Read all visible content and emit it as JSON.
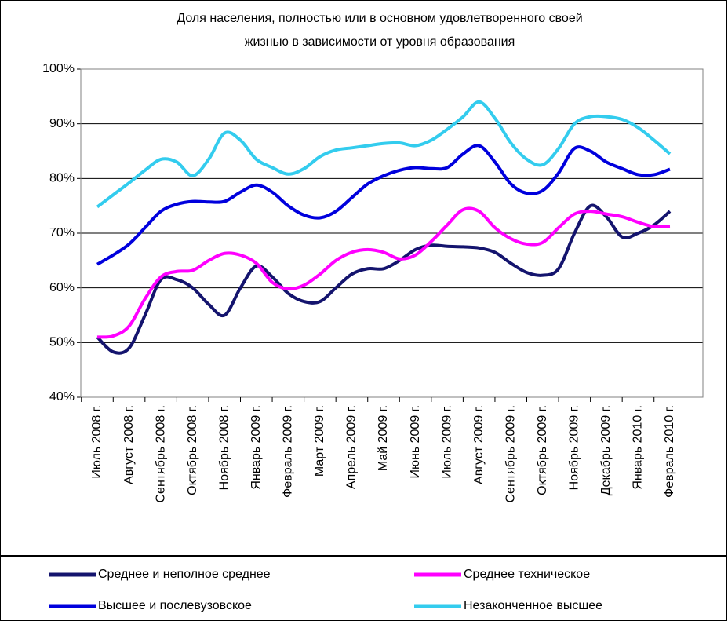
{
  "chart_data": {
    "type": "line",
    "title": [
      "Доля населения, полностью или в основном удовлетворенного своей",
      "жизнью  в зависимости от уровня образования"
    ],
    "categories": [
      "Июль 2008 г.",
      null,
      "Август 2008 г.",
      null,
      "Сентябрь 2008 г.",
      null,
      "Октябрь 2008 г.",
      null,
      "Ноябрь 2008 г.",
      null,
      "Январь 2009 г.",
      null,
      "Февраль 2009 г.",
      null,
      "Март 2009 г.",
      null,
      "Апрель 2009 г.",
      null,
      "Май 2009 г.",
      null,
      "Июнь 2009 г.",
      null,
      "Июль 2009 г.",
      null,
      "Август 2009 г.",
      null,
      "Сентябрь 2009 г.",
      null,
      "Октябрь 2009 г.",
      null,
      "Ноябрь 2009 г.",
      null,
      "Декабрь 2009 г.",
      null,
      "Январь 2010 г.",
      null,
      "Февраль 2010 г."
    ],
    "series": [
      {
        "name": "Среднее и неполное среднее",
        "color": "#14146e",
        "values": [
          51,
          48.3,
          49,
          55,
          61.5,
          61.5,
          60,
          57,
          55,
          60,
          64,
          62,
          59,
          57.5,
          57.5,
          60,
          62.5,
          63.5,
          63.5,
          65,
          67,
          67.8,
          67.6,
          67.5,
          67.3,
          66.5,
          64.5,
          62.8,
          62.3,
          63.5,
          70,
          75,
          73,
          69.3,
          70,
          71.5,
          74
        ]
      },
      {
        "name": "Среднее техническое",
        "color": "#ff00ff",
        "values": [
          51,
          51.2,
          53,
          58,
          62,
          63,
          63.2,
          65,
          66.3,
          66,
          64.5,
          61,
          59.8,
          60.5,
          62.5,
          65,
          66.5,
          67,
          66.5,
          65.3,
          66,
          68.5,
          71.5,
          74.3,
          74,
          71,
          69,
          68,
          68.3,
          71,
          73.5,
          74,
          73.5,
          73,
          72,
          71.2,
          71.3
        ]
      },
      {
        "name": "Высшее и послевузовское",
        "color": "#0000dd",
        "values": [
          64.3,
          66,
          68,
          71,
          74,
          75.3,
          75.8,
          75.7,
          75.8,
          77.5,
          78.8,
          77.5,
          75,
          73.3,
          72.8,
          74,
          76.5,
          79,
          80.5,
          81.5,
          82,
          81.8,
          82,
          84.5,
          86,
          83,
          79,
          77.3,
          77.8,
          81,
          85.5,
          85,
          83,
          81.8,
          80.7,
          80.7,
          81.7
        ]
      },
      {
        "name": "Незаконченное высшее",
        "color": "#33ccee",
        "values": [
          74.8,
          77,
          79.2,
          81.5,
          83.5,
          83,
          80.5,
          83.5,
          88.3,
          87,
          83.5,
          82,
          80.8,
          81.8,
          84,
          85.2,
          85.6,
          86,
          86.4,
          86.5,
          86,
          87,
          89,
          91.3,
          94,
          91,
          86.5,
          83.5,
          82.5,
          85.5,
          90,
          91.3,
          91.3,
          90.8,
          89.3,
          87,
          84.5
        ]
      }
    ],
    "ylim": [
      40,
      100
    ],
    "yticks": [
      {
        "value": 40,
        "label": "40%"
      },
      {
        "value": 50,
        "label": "50%"
      },
      {
        "value": 60,
        "label": "60%"
      },
      {
        "value": 70,
        "label": "70%"
      },
      {
        "value": 80,
        "label": "80%"
      },
      {
        "value": 90,
        "label": "90%"
      },
      {
        "value": 100,
        "label": "100%"
      }
    ],
    "grid": true
  }
}
